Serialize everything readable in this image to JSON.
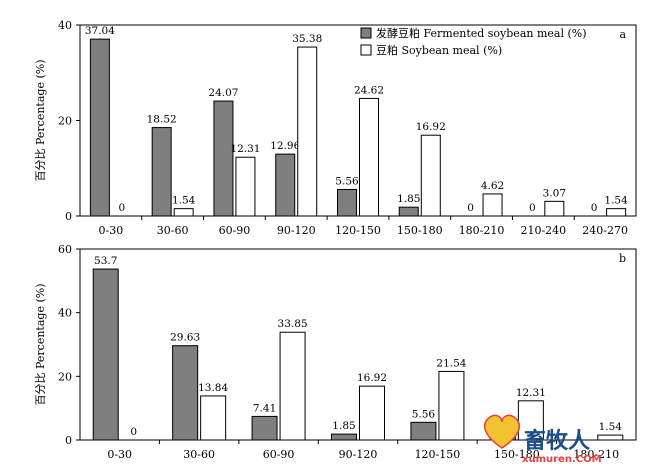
{
  "colors": {
    "fermented": "#7f7f7f",
    "soybean": "#ffffff",
    "outline": "#000000",
    "watermark_red": "#e8403a",
    "watermark_blue": "#1c4c8c"
  },
  "watermark": {
    "cn": "畜牧人",
    "url": "xumuren.COM"
  },
  "chart_data": [
    {
      "type": "bar",
      "panel": "a",
      "ylabel": "百分比 Percentage (%)",
      "ylim": [
        0,
        40
      ],
      "yticks": [
        0,
        20,
        40
      ],
      "categories": [
        "0-30",
        "30-60",
        "60-90",
        "90-120",
        "120-150",
        "150-180",
        "180-210",
        "210-240",
        "240-270"
      ],
      "legend": {
        "placement": "top-right"
      },
      "series": [
        {
          "name": "发酵豆粕 Fermented soybean meal (%)",
          "key": "fermented",
          "values": [
            37.04,
            18.52,
            24.07,
            12.96,
            5.56,
            1.85,
            0,
            0,
            0
          ],
          "labels": [
            "37.04",
            "18.52",
            "24.07",
            "12.96",
            "5.56",
            "1.85",
            "0",
            "0",
            "0"
          ]
        },
        {
          "name": "豆粕 Soybean meal (%)",
          "key": "soybean",
          "values": [
            0,
            1.54,
            12.31,
            35.38,
            24.62,
            16.92,
            4.62,
            3.07,
            1.54
          ],
          "labels": [
            "0",
            "1.54",
            "12.31",
            "35.38",
            "24.62",
            "16.92",
            "4.62",
            "3.07",
            "1.54"
          ]
        }
      ]
    },
    {
      "type": "bar",
      "panel": "b",
      "ylabel": "百分比 Percentage (%)",
      "ylim": [
        0,
        60
      ],
      "yticks": [
        0,
        20,
        40,
        60
      ],
      "categories": [
        "0-30",
        "30-60",
        "60-90",
        "90-120",
        "120-150",
        "150-180",
        "180-210"
      ],
      "series": [
        {
          "name": "发酵豆粕 Fermented soybean meal (%)",
          "key": "fermented",
          "values": [
            53.7,
            29.63,
            7.41,
            1.85,
            5.56,
            1.85,
            0
          ],
          "labels": [
            "53.7",
            "29.63",
            "7.41",
            "1.85",
            "5.56",
            "1.85",
            ""
          ]
        },
        {
          "name": "豆粕 Soybean meal (%)",
          "key": "soybean",
          "values": [
            0,
            13.84,
            33.85,
            16.92,
            21.54,
            12.31,
            1.54
          ],
          "labels": [
            "0",
            "13.84",
            "33.85",
            "16.92",
            "21.54",
            "12.31",
            "1.54"
          ]
        }
      ]
    }
  ]
}
